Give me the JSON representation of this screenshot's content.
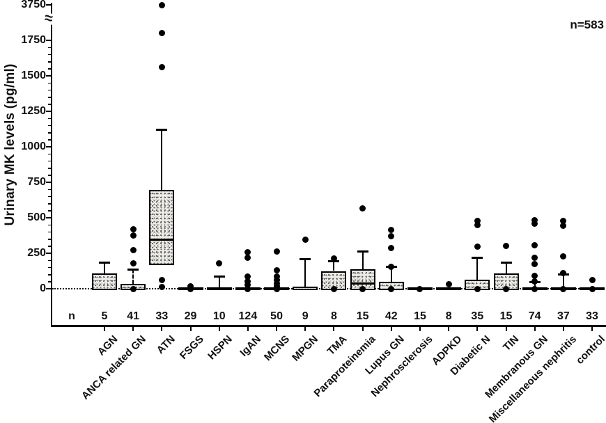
{
  "figure": {
    "ylabel": "Urinary MK levels (pg/ml)",
    "annotation": "n=583",
    "n_row_label": "n"
  },
  "chart_data": {
    "type": "box",
    "title": "",
    "ylabel": "Urinary MK levels (pg/ml)",
    "annotation": "n=583",
    "total_n": 583,
    "y_axis": {
      "ticks": [
        0,
        250,
        500,
        750,
        1000,
        1250,
        1500,
        1750,
        3750
      ],
      "axis_break_between": [
        1750,
        3750
      ],
      "minor_tick_step": 50,
      "linear_range": [
        0,
        1850
      ]
    },
    "grid": "off",
    "legend": "none",
    "zero_line": "dotted",
    "categories": [
      "AGN",
      "ANCA related GN",
      "ATN",
      "FSGS",
      "HSPN",
      "IgAN",
      "MCNS",
      "MPGN",
      "TMA",
      "Paraproteinemia",
      "Lupus GN",
      "Nephrosclerosis",
      "ADPKD",
      "Diabetic N",
      "TIN",
      "Membranous GN",
      "Miscellaneous nephritis",
      "control"
    ],
    "n_values": [
      5,
      41,
      33,
      29,
      10,
      124,
      50,
      9,
      8,
      15,
      42,
      15,
      8,
      35,
      15,
      74,
      37,
      33
    ],
    "series": [
      {
        "name": "AGN",
        "n": 5,
        "q1": 0,
        "median": 0,
        "q3": 110,
        "whisker_high": 185,
        "whisker_dashed": false,
        "outliers": []
      },
      {
        "name": "ANCA related GN",
        "n": 41,
        "q1": 0,
        "median": 0,
        "q3": 35,
        "whisker_high": 135,
        "whisker_dashed": true,
        "outliers": [
          420,
          375,
          270,
          180,
          0
        ]
      },
      {
        "name": "ATN",
        "n": 33,
        "q1": 165,
        "median": 345,
        "q3": 695,
        "whisker_high": 1120,
        "whisker_dashed": false,
        "outliers": [
          3700,
          1800,
          1560,
          60,
          10
        ]
      },
      {
        "name": "FSGS",
        "n": 29,
        "q1": 0,
        "median": 0,
        "q3": 0,
        "whisker_high": 0,
        "whisker_dashed": false,
        "outliers": [
          15,
          0
        ]
      },
      {
        "name": "HSPN",
        "n": 10,
        "q1": 0,
        "median": 0,
        "q3": 0,
        "whisker_high": 85,
        "whisker_dashed": false,
        "outliers": [
          180
        ]
      },
      {
        "name": "IgAN",
        "n": 124,
        "q1": 0,
        "median": 0,
        "q3": 12,
        "whisker_high": 0,
        "whisker_dashed": false,
        "outliers": [
          255,
          220,
          85,
          50,
          25,
          0
        ]
      },
      {
        "name": "MCNS",
        "n": 50,
        "q1": 0,
        "median": 0,
        "q3": 0,
        "whisker_high": 0,
        "whisker_dashed": false,
        "outliers": [
          260,
          130,
          85,
          60,
          35,
          15,
          0
        ]
      },
      {
        "name": "MPGN",
        "n": 9,
        "q1": 0,
        "median": 0,
        "q3": 14,
        "whisker_high": 210,
        "whisker_dashed": false,
        "outliers": [
          345
        ]
      },
      {
        "name": "TMA",
        "n": 8,
        "q1": 0,
        "median": 0,
        "q3": 125,
        "whisker_high": 195,
        "whisker_dashed": false,
        "outliers": [
          215,
          0
        ]
      },
      {
        "name": "Paraproteinemia",
        "n": 15,
        "q1": 0,
        "median": 35,
        "q3": 137,
        "whisker_high": 260,
        "whisker_dashed": false,
        "outliers": [
          565,
          0
        ]
      },
      {
        "name": "Lupus GN",
        "n": 42,
        "q1": 0,
        "median": 0,
        "q3": 50,
        "whisker_high": 155,
        "whisker_dashed": false,
        "outliers": [
          415,
          370,
          285,
          155,
          0
        ]
      },
      {
        "name": "Nephrosclerosis",
        "n": 15,
        "q1": 0,
        "median": 0,
        "q3": 0,
        "whisker_high": 0,
        "whisker_dashed": false,
        "outliers": [
          0
        ]
      },
      {
        "name": "ADPKD",
        "n": 8,
        "q1": 0,
        "median": 0,
        "q3": 8,
        "whisker_high": 0,
        "whisker_dashed": false,
        "outliers": [
          30
        ]
      },
      {
        "name": "Diabetic N",
        "n": 35,
        "q1": 0,
        "median": 0,
        "q3": 65,
        "whisker_high": 220,
        "whisker_dashed": false,
        "outliers": [
          480,
          450,
          295,
          0
        ]
      },
      {
        "name": "TIN",
        "n": 15,
        "q1": 0,
        "median": 0,
        "q3": 108,
        "whisker_high": 182,
        "whisker_dashed": false,
        "outliers": [
          300,
          0
        ]
      },
      {
        "name": "Membranous GN",
        "n": 74,
        "q1": 0,
        "median": 0,
        "q3": 0,
        "whisker_high": 45,
        "whisker_dashed": false,
        "outliers": [
          485,
          460,
          305,
          220,
          175,
          90,
          50,
          0
        ]
      },
      {
        "name": "Miscellaneous nephritis",
        "n": 37,
        "q1": 0,
        "median": 0,
        "q3": 0,
        "whisker_high": 100,
        "whisker_dashed": false,
        "outliers": [
          480,
          445,
          230,
          110,
          0
        ]
      },
      {
        "name": "control",
        "n": 33,
        "q1": 0,
        "median": 0,
        "q3": 0,
        "whisker_high": 0,
        "whisker_dashed": false,
        "outliers": [
          60,
          0
        ]
      }
    ],
    "colors": {
      "ink": "#111111",
      "box_fill": "#efede8",
      "background": "#ffffff"
    }
  }
}
